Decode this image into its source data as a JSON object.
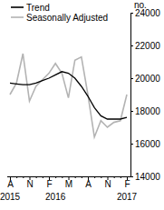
{
  "chart_data": {
    "type": "line",
    "y_label": "no.",
    "categories": [
      "A",
      null,
      null,
      "N",
      null,
      null,
      "F",
      null,
      null,
      "M",
      null,
      null,
      "A",
      null,
      null,
      "N",
      null,
      null,
      "F"
    ],
    "annotations": [
      {
        "label": "2015",
        "category": 0
      },
      {
        "label": "2016",
        "category": 7
      },
      {
        "label": "2017",
        "category": 18
      }
    ],
    "series": [
      {
        "name": "Trend",
        "color": "#000000",
        "values": [
          19700,
          19650,
          19600,
          19600,
          19700,
          19850,
          20000,
          20200,
          20400,
          20300,
          20000,
          19500,
          18900,
          18200,
          17700,
          17500,
          17500,
          17500,
          17600
        ]
      },
      {
        "name": "Seasonally Adjusted",
        "color": "#b3b3b3",
        "values": [
          19000,
          19700,
          21500,
          18600,
          19500,
          19900,
          20300,
          20900,
          20300,
          18800,
          21100,
          21300,
          19000,
          16400,
          17400,
          17000,
          17300,
          17400,
          19000
        ]
      }
    ],
    "ylim": [
      14000,
      24000
    ],
    "yticks": [
      14000,
      16000,
      18000,
      20000,
      22000,
      24000
    ],
    "legend": "top-left"
  }
}
